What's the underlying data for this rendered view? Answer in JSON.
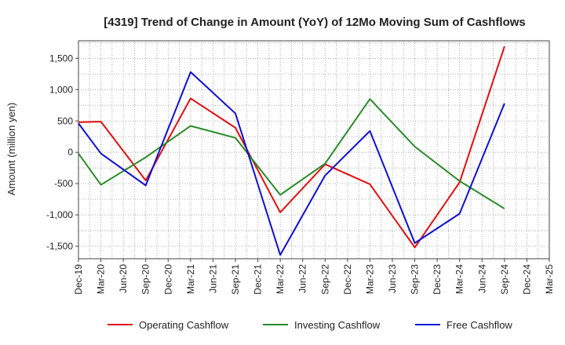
{
  "chart_data": {
    "type": "line",
    "title": "[4319]  Trend of Change in Amount (YoY) of 12Mo Moving Sum of Cashflows",
    "xlabel": "",
    "ylabel": "Amount (million yen)",
    "ylim": [
      -1700,
      1780
    ],
    "yticks": [
      -1500,
      -1000,
      -500,
      0,
      500,
      1000,
      1500
    ],
    "ytick_labels": [
      "-1,500",
      "-1,000",
      "-500",
      "0",
      "500",
      "1,000",
      "1,500"
    ],
    "categories": [
      "Dec-19",
      "Mar-20",
      "Jun-20",
      "Sep-20",
      "Dec-20",
      "Mar-21",
      "Jun-21",
      "Sep-21",
      "Dec-21",
      "Mar-22",
      "Jun-22",
      "Sep-22",
      "Dec-22",
      "Mar-23",
      "Jun-23",
      "Sep-23",
      "Dec-23",
      "Mar-24",
      "Jun-24",
      "Sep-24",
      "Dec-24",
      "Mar-25"
    ],
    "grid": true,
    "legend_position": "bottom",
    "series": [
      {
        "name": "Operating Cashflow",
        "color": "#e01010",
        "values": [
          480,
          490,
          null,
          -450,
          null,
          860,
          null,
          390,
          null,
          -960,
          null,
          -190,
          null,
          -510,
          null,
          -1520,
          null,
          -480,
          null,
          1690,
          null,
          null
        ]
      },
      {
        "name": "Investing Cashflow",
        "color": "#2a8a2a",
        "values": [
          -20,
          -520,
          null,
          -80,
          null,
          420,
          null,
          230,
          null,
          -680,
          null,
          -180,
          null,
          850,
          null,
          90,
          null,
          -460,
          null,
          -900,
          null,
          null
        ]
      },
      {
        "name": "Free Cashflow",
        "color": "#1010d0",
        "values": [
          460,
          -20,
          null,
          -530,
          null,
          1280,
          null,
          620,
          null,
          -1640,
          null,
          -370,
          null,
          340,
          null,
          -1450,
          null,
          -980,
          null,
          780,
          null,
          null
        ]
      }
    ]
  }
}
